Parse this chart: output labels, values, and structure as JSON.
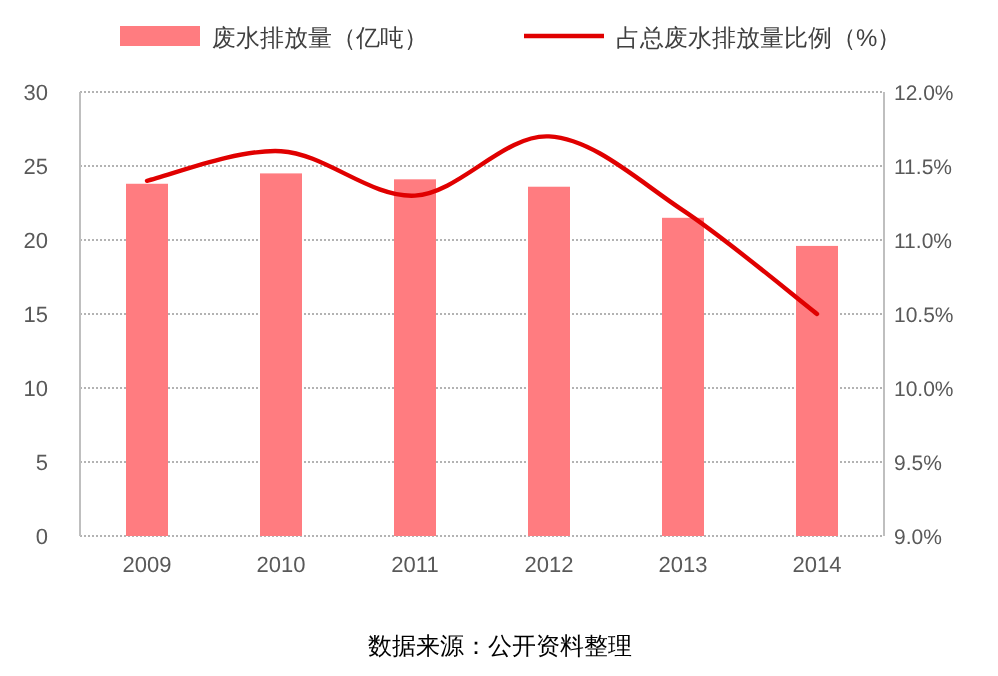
{
  "chart_data": {
    "type": "bar",
    "categories": [
      "2009",
      "2010",
      "2011",
      "2012",
      "2013",
      "2014"
    ],
    "series": [
      {
        "name": "废水排放量（亿吨）",
        "color": "#ff7c80",
        "values": [
          23.8,
          24.5,
          24.1,
          23.6,
          21.5,
          19.6
        ]
      },
      {
        "name": "占总废水排放量比例（%）",
        "type": "line",
        "axis": "y2",
        "color": "#e00000",
        "values": [
          11.4,
          11.6,
          11.3,
          11.7,
          11.2,
          10.5
        ]
      }
    ],
    "ylim": [
      0,
      30
    ],
    "yticks": [
      0,
      5,
      10,
      15,
      20,
      25,
      30
    ],
    "y2lim": [
      9,
      12
    ],
    "y2ticks": [
      {
        "value": 9,
        "label": "9.0%"
      },
      {
        "value": 9.5,
        "label": "9.5%"
      },
      {
        "value": 10,
        "label": "10.0%"
      },
      {
        "value": 10.5,
        "label": "10.5%"
      },
      {
        "value": 11,
        "label": "11.0%"
      },
      {
        "value": 11.5,
        "label": "11.5%"
      },
      {
        "value": 12,
        "label": "12.0%"
      }
    ],
    "grid": "y",
    "legend": "top",
    "marker": "none",
    "line_style": "solid",
    "annotations": [
      "数据来源：公开资料整理"
    ]
  }
}
